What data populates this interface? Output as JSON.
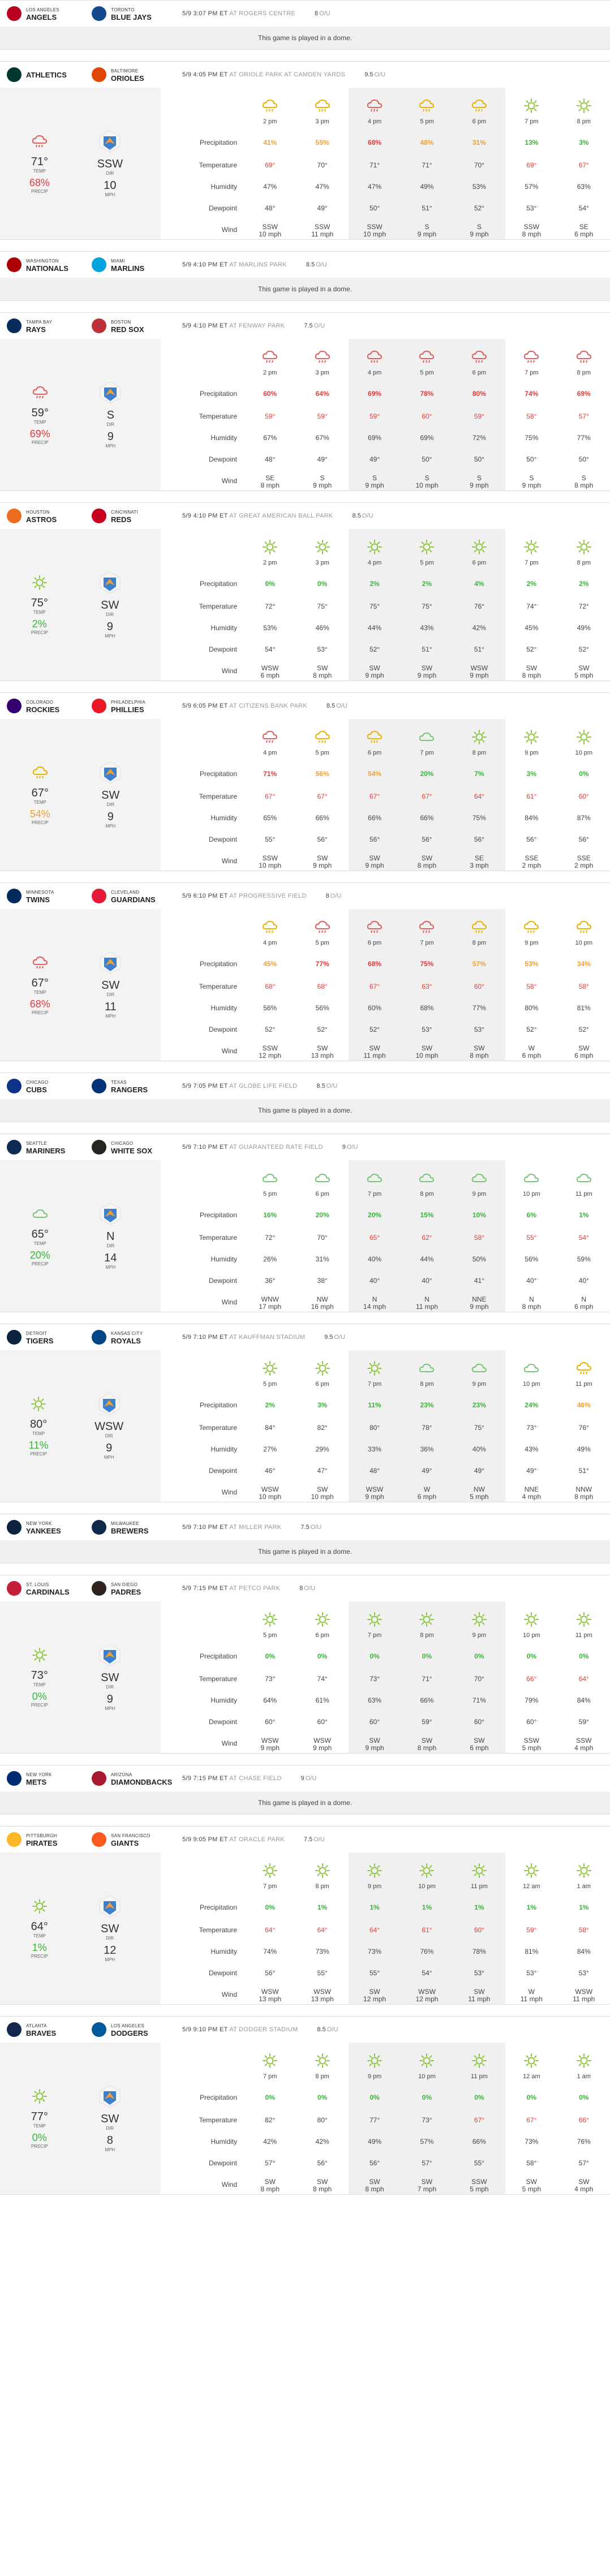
{
  "colors": {
    "green": "#3ab53a",
    "yellow": "#e6b400",
    "orange": "#f0a030",
    "red": "#e03c3c",
    "sun": "#8cc63f",
    "cloud": "#7cc47c",
    "rain": "#e06060"
  },
  "labels": {
    "precip": "Precipitation",
    "temp": "Temperature",
    "humidity": "Humidity",
    "dewpoint": "Dewpoint",
    "wind": "Wind",
    "temp_s": "TEMP",
    "dir_s": "DIR",
    "mph_s": "MPH",
    "precip_s": "PRECIP",
    "dome": "This game is played in a dome.",
    "ou": "O/U"
  },
  "games": [
    {
      "away": {
        "city": "LOS ANGELES",
        "nick": "ANGELS",
        "color": "#ba0021"
      },
      "home": {
        "city": "TORONTO",
        "nick": "BLUE JAYS",
        "color": "#134a8e"
      },
      "time": "5/9 3:07 PM ET",
      "venue": "AT ROGERS CENTRE",
      "ou": "8",
      "dome": true
    },
    {
      "away": {
        "city": "",
        "nick": "ATHLETICS",
        "color": "#003831"
      },
      "home": {
        "city": "BALTIMORE",
        "nick": "ORIOLES",
        "color": "#df4601"
      },
      "time": "5/9 4:05 PM ET",
      "venue": "AT ORIOLE PARK AT CAMDEN YARDS",
      "ou": "9.5",
      "dome": false,
      "summary": {
        "icon": "rain",
        "temp": "71°",
        "dir": "SSW",
        "mph": "10",
        "precip": "68%",
        "pcolor": "red"
      },
      "hours": [
        "2 pm",
        "3 pm",
        "4 pm",
        "5 pm",
        "6 pm",
        "7 pm",
        "8 pm"
      ],
      "icons": [
        "partly",
        "partly",
        "rain",
        "partly",
        "partly",
        "sun",
        "sun"
      ],
      "precip": [
        "41%",
        "55%",
        "68%",
        "48%",
        "31%",
        "13%",
        "3%"
      ],
      "pcolors": [
        "orange",
        "orange",
        "red",
        "orange",
        "orange",
        "green",
        "green"
      ],
      "temp": [
        "69°",
        "70°",
        "71°",
        "71°",
        "70°",
        "69°",
        "67°"
      ],
      "humidity": [
        "47%",
        "47%",
        "47%",
        "49%",
        "53%",
        "57%",
        "63%"
      ],
      "dew": [
        "48°",
        "49°",
        "50°",
        "51°",
        "52°",
        "53°",
        "54°"
      ],
      "wind": [
        "SSW\n10 mph",
        "SSW\n11 mph",
        "SSW\n10 mph",
        "S\n9 mph",
        "S\n9 mph",
        "SSW\n8 mph",
        "SE\n6 mph"
      ],
      "tcolors": [
        "red",
        "",
        "",
        "",
        "",
        "red",
        "red"
      ]
    },
    {
      "away": {
        "city": "WASHINGTON",
        "nick": "NATIONALS",
        "color": "#ab0003"
      },
      "home": {
        "city": "MIAMI",
        "nick": "MARLINS",
        "color": "#00a3e0"
      },
      "time": "5/9 4:10 PM ET",
      "venue": "AT MARLINS PARK",
      "ou": "8.5",
      "dome": true
    },
    {
      "away": {
        "city": "TAMPA BAY",
        "nick": "RAYS",
        "color": "#092c5c"
      },
      "home": {
        "city": "BOSTON",
        "nick": "RED SOX",
        "color": "#bd3039"
      },
      "time": "5/9 4:10 PM ET",
      "venue": "AT FENWAY PARK",
      "ou": "7.5",
      "dome": false,
      "summary": {
        "icon": "rain",
        "temp": "59°",
        "dir": "S",
        "mph": "9",
        "precip": "69%",
        "pcolor": "red"
      },
      "hours": [
        "2 pm",
        "3 pm",
        "4 pm",
        "5 pm",
        "6 pm",
        "7 pm",
        "8 pm"
      ],
      "icons": [
        "rain",
        "rain",
        "rain",
        "rain",
        "rain",
        "rain",
        "rain"
      ],
      "precip": [
        "60%",
        "64%",
        "69%",
        "78%",
        "80%",
        "74%",
        "69%"
      ],
      "pcolors": [
        "red",
        "red",
        "red",
        "red",
        "red",
        "red",
        "red"
      ],
      "temp": [
        "59°",
        "59°",
        "59°",
        "60°",
        "59°",
        "58°",
        "57°"
      ],
      "humidity": [
        "67%",
        "67%",
        "69%",
        "69%",
        "72%",
        "75%",
        "77%"
      ],
      "dew": [
        "48°",
        "49°",
        "49°",
        "50°",
        "50°",
        "50°",
        "50°"
      ],
      "wind": [
        "SE\n8 mph",
        "S\n9 mph",
        "S\n9 mph",
        "S\n10 mph",
        "S\n9 mph",
        "S\n9 mph",
        "S\n8 mph"
      ],
      "tcolors": [
        "red",
        "red",
        "red",
        "red",
        "red",
        "red",
        "red"
      ]
    },
    {
      "away": {
        "city": "HOUSTON",
        "nick": "ASTROS",
        "color": "#eb6e1f"
      },
      "home": {
        "city": "CINCINNATI",
        "nick": "REDS",
        "color": "#c6011f"
      },
      "time": "5/9 4:10 PM ET",
      "venue": "AT GREAT AMERICAN BALL PARK",
      "ou": "8.5",
      "dome": false,
      "summary": {
        "icon": "sun",
        "temp": "75°",
        "dir": "SW",
        "mph": "9",
        "precip": "2%",
        "pcolor": "green"
      },
      "hours": [
        "2 pm",
        "3 pm",
        "4 pm",
        "5 pm",
        "6 pm",
        "7 pm",
        "8 pm"
      ],
      "icons": [
        "sun",
        "sun",
        "sun",
        "sun",
        "sun",
        "sun",
        "sun"
      ],
      "precip": [
        "0%",
        "0%",
        "2%",
        "2%",
        "4%",
        "2%",
        "2%"
      ],
      "pcolors": [
        "green",
        "green",
        "green",
        "green",
        "green",
        "green",
        "green"
      ],
      "temp": [
        "72°",
        "75°",
        "75°",
        "75°",
        "76°",
        "74°",
        "72°"
      ],
      "humidity": [
        "53%",
        "46%",
        "44%",
        "43%",
        "42%",
        "45%",
        "49%"
      ],
      "dew": [
        "54°",
        "53°",
        "52°",
        "51°",
        "51°",
        "52°",
        "52°"
      ],
      "wind": [
        "WSW\n6 mph",
        "SW\n8 mph",
        "SW\n9 mph",
        "SW\n9 mph",
        "WSW\n9 mph",
        "SW\n8 mph",
        "SW\n5 mph"
      ],
      "tcolors": [
        "",
        "",
        "",
        "",
        "",
        "",
        ""
      ]
    },
    {
      "away": {
        "city": "COLORADO",
        "nick": "ROCKIES",
        "color": "#33006f"
      },
      "home": {
        "city": "PHILADELPHIA",
        "nick": "PHILLIES",
        "color": "#e81828"
      },
      "time": "5/9 6:05 PM ET",
      "venue": "AT CITIZENS BANK PARK",
      "ou": "8.5",
      "dome": false,
      "summary": {
        "icon": "partly",
        "temp": "67°",
        "dir": "SW",
        "mph": "9",
        "precip": "54%",
        "pcolor": "orange"
      },
      "hours": [
        "4 pm",
        "5 pm",
        "6 pm",
        "7 pm",
        "8 pm",
        "9 pm",
        "10 pm"
      ],
      "icons": [
        "rain",
        "partly",
        "partly",
        "cloud",
        "sun",
        "sun",
        "sun"
      ],
      "precip": [
        "71%",
        "56%",
        "54%",
        "20%",
        "7%",
        "3%",
        "0%"
      ],
      "pcolors": [
        "red",
        "orange",
        "orange",
        "green",
        "green",
        "green",
        "green"
      ],
      "temp": [
        "67°",
        "67°",
        "67°",
        "67°",
        "64°",
        "61°",
        "60°"
      ],
      "humidity": [
        "65%",
        "66%",
        "66%",
        "66%",
        "75%",
        "84%",
        "87%"
      ],
      "dew": [
        "55°",
        "56°",
        "56°",
        "56°",
        "56°",
        "56°",
        "56°"
      ],
      "wind": [
        "SSW\n10 mph",
        "SW\n9 mph",
        "SW\n9 mph",
        "SW\n8 mph",
        "SE\n3 mph",
        "SSE\n2 mph",
        "SSE\n2 mph"
      ],
      "tcolors": [
        "red",
        "red",
        "red",
        "red",
        "red",
        "red",
        "red"
      ]
    },
    {
      "away": {
        "city": "MINNESOTA",
        "nick": "TWINS",
        "color": "#002b5c"
      },
      "home": {
        "city": "CLEVELAND",
        "nick": "GUARDIANS",
        "color": "#e31937"
      },
      "time": "5/9 6:10 PM ET",
      "venue": "AT PROGRESSIVE FIELD",
      "ou": "8",
      "dome": false,
      "summary": {
        "icon": "rain",
        "temp": "67°",
        "dir": "SW",
        "mph": "11",
        "precip": "68%",
        "pcolor": "red"
      },
      "hours": [
        "4 pm",
        "5 pm",
        "6 pm",
        "7 pm",
        "8 pm",
        "9 pm",
        "10 pm"
      ],
      "icons": [
        "partly",
        "rain",
        "rain",
        "rain",
        "partly",
        "partly",
        "partly"
      ],
      "precip": [
        "45%",
        "77%",
        "68%",
        "75%",
        "57%",
        "53%",
        "34%"
      ],
      "pcolors": [
        "orange",
        "red",
        "red",
        "red",
        "orange",
        "orange",
        "orange"
      ],
      "temp": [
        "68°",
        "68°",
        "67°",
        "63°",
        "60°",
        "58°",
        "58°"
      ],
      "humidity": [
        "56%",
        "56%",
        "60%",
        "68%",
        "77%",
        "80%",
        "81%"
      ],
      "dew": [
        "52°",
        "52°",
        "52°",
        "53°",
        "53°",
        "52°",
        "52°"
      ],
      "wind": [
        "SSW\n12 mph",
        "SW\n13 mph",
        "SW\n11 mph",
        "SW\n10 mph",
        "SW\n8 mph",
        "W\n6 mph",
        "SW\n6 mph"
      ],
      "tcolors": [
        "red",
        "red",
        "red",
        "red",
        "red",
        "red",
        "red"
      ]
    },
    {
      "away": {
        "city": "CHICAGO",
        "nick": "CUBS",
        "color": "#0e3386"
      },
      "home": {
        "city": "TEXAS",
        "nick": "RANGERS",
        "color": "#003278"
      },
      "time": "5/9 7:05 PM ET",
      "venue": "AT GLOBE LIFE FIELD",
      "ou": "8.5",
      "dome": true
    },
    {
      "away": {
        "city": "SEATTLE",
        "nick": "MARINERS",
        "color": "#0c2c56"
      },
      "home": {
        "city": "CHICAGO",
        "nick": "WHITE SOX",
        "color": "#27251f"
      },
      "time": "5/9 7:10 PM ET",
      "venue": "AT GUARANTEED RATE FIELD",
      "ou": "9",
      "dome": false,
      "summary": {
        "icon": "cloud",
        "temp": "65°",
        "dir": "N",
        "mph": "14",
        "precip": "20%",
        "pcolor": "green"
      },
      "hours": [
        "5 pm",
        "6 pm",
        "7 pm",
        "8 pm",
        "9 pm",
        "10 pm",
        "11 pm"
      ],
      "icons": [
        "cloud",
        "cloud",
        "cloud",
        "cloud",
        "cloud",
        "cloud",
        "cloud"
      ],
      "precip": [
        "16%",
        "20%",
        "20%",
        "15%",
        "10%",
        "6%",
        "1%"
      ],
      "pcolors": [
        "green",
        "green",
        "green",
        "green",
        "green",
        "green",
        "green"
      ],
      "temp": [
        "72°",
        "70°",
        "65°",
        "62°",
        "58°",
        "55°",
        "54°"
      ],
      "humidity": [
        "26%",
        "31%",
        "40%",
        "44%",
        "50%",
        "56%",
        "59%"
      ],
      "dew": [
        "36°",
        "38°",
        "40°",
        "40°",
        "41°",
        "40°",
        "40°"
      ],
      "wind": [
        "WNW\n17 mph",
        "NW\n16 mph",
        "N\n14 mph",
        "N\n11 mph",
        "NNE\n9 mph",
        "N\n8 mph",
        "N\n6 mph"
      ],
      "tcolors": [
        "",
        "",
        "red",
        "red",
        "red",
        "red",
        "red"
      ]
    },
    {
      "away": {
        "city": "DETROIT",
        "nick": "TIGERS",
        "color": "#0c2340"
      },
      "home": {
        "city": "KANSAS CITY",
        "nick": "ROYALS",
        "color": "#004687"
      },
      "time": "5/9 7:10 PM ET",
      "venue": "AT KAUFFMAN STADIUM",
      "ou": "9.5",
      "dome": false,
      "summary": {
        "icon": "sun",
        "temp": "80°",
        "dir": "WSW",
        "mph": "9",
        "precip": "11%",
        "pcolor": "green"
      },
      "hours": [
        "5 pm",
        "6 pm",
        "7 pm",
        "8 pm",
        "9 pm",
        "10 pm",
        "11 pm"
      ],
      "icons": [
        "sun",
        "sun",
        "sun",
        "cloud",
        "cloud",
        "cloud",
        "partly"
      ],
      "precip": [
        "2%",
        "3%",
        "11%",
        "23%",
        "23%",
        "24%",
        "46%"
      ],
      "pcolors": [
        "green",
        "green",
        "green",
        "green",
        "green",
        "green",
        "orange"
      ],
      "temp": [
        "84°",
        "82°",
        "80°",
        "78°",
        "75°",
        "73°",
        "76°"
      ],
      "humidity": [
        "27%",
        "29%",
        "33%",
        "36%",
        "40%",
        "43%",
        "49%"
      ],
      "dew": [
        "46°",
        "47°",
        "48°",
        "49°",
        "49°",
        "49°",
        "51°"
      ],
      "wind": [
        "WSW\n10 mph",
        "SW\n10 mph",
        "WSW\n9 mph",
        "W\n6 mph",
        "NW\n5 mph",
        "NNE\n4 mph",
        "NNW\n8 mph"
      ],
      "tcolors": [
        "",
        "",
        "",
        "",
        "",
        "",
        ""
      ]
    },
    {
      "away": {
        "city": "NEW YORK",
        "nick": "YANKEES",
        "color": "#0c2340"
      },
      "home": {
        "city": "MILWAUKEE",
        "nick": "BREWERS",
        "color": "#12284b"
      },
      "time": "5/9 7:10 PM ET",
      "venue": "AT MILLER PARK",
      "ou": "7.5",
      "dome": true
    },
    {
      "away": {
        "city": "ST. LOUIS",
        "nick": "CARDINALS",
        "color": "#c41e3a"
      },
      "home": {
        "city": "SAN DIEGO",
        "nick": "PADRES",
        "color": "#2f241d"
      },
      "time": "5/9 7:15 PM ET",
      "venue": "AT PETCO PARK",
      "ou": "8",
      "dome": false,
      "summary": {
        "icon": "sun",
        "temp": "73°",
        "dir": "SW",
        "mph": "9",
        "precip": "0%",
        "pcolor": "green"
      },
      "hours": [
        "5 pm",
        "6 pm",
        "7 pm",
        "8 pm",
        "9 pm",
        "10 pm",
        "11 pm"
      ],
      "icons": [
        "sun",
        "sun",
        "sun",
        "sun",
        "sun",
        "sun",
        "sun"
      ],
      "precip": [
        "0%",
        "0%",
        "0%",
        "0%",
        "0%",
        "0%",
        "0%"
      ],
      "pcolors": [
        "green",
        "green",
        "green",
        "green",
        "green",
        "green",
        "green"
      ],
      "temp": [
        "73°",
        "74°",
        "73°",
        "71°",
        "70°",
        "66°",
        "64°"
      ],
      "humidity": [
        "64%",
        "61%",
        "63%",
        "66%",
        "71%",
        "79%",
        "84%"
      ],
      "dew": [
        "60°",
        "60°",
        "60°",
        "59°",
        "60°",
        "60°",
        "59°"
      ],
      "wind": [
        "WSW\n9 mph",
        "WSW\n9 mph",
        "SW\n9 mph",
        "SW\n8 mph",
        "SW\n6 mph",
        "SSW\n5 mph",
        "SSW\n4 mph"
      ],
      "tcolors": [
        "",
        "",
        "",
        "",
        "",
        "red",
        "red"
      ]
    },
    {
      "away": {
        "city": "NEW YORK",
        "nick": "METS",
        "color": "#002d72"
      },
      "home": {
        "city": "ARIZONA",
        "nick": "DIAMONDBACKS",
        "color": "#a71930"
      },
      "time": "5/9 7:15 PM ET",
      "venue": "AT CHASE FIELD",
      "ou": "9",
      "dome": true
    },
    {
      "away": {
        "city": "PITTSBURGH",
        "nick": "PIRATES",
        "color": "#fdb827"
      },
      "home": {
        "city": "SAN FRANCISCO",
        "nick": "GIANTS",
        "color": "#fd5a1e"
      },
      "time": "5/9 9:05 PM ET",
      "venue": "AT ORACLE PARK",
      "ou": "7.5",
      "dome": false,
      "summary": {
        "icon": "sun",
        "temp": "64°",
        "dir": "SW",
        "mph": "12",
        "precip": "1%",
        "pcolor": "green"
      },
      "hours": [
        "7 pm",
        "8 pm",
        "9 pm",
        "10 pm",
        "11 pm",
        "12 am",
        "1 am"
      ],
      "icons": [
        "sun",
        "sun",
        "sun",
        "sun",
        "sun",
        "sun",
        "sun"
      ],
      "precip": [
        "0%",
        "1%",
        "1%",
        "1%",
        "1%",
        "1%",
        "1%"
      ],
      "pcolors": [
        "green",
        "green",
        "green",
        "green",
        "green",
        "green",
        "green"
      ],
      "temp": [
        "64°",
        "64°",
        "64°",
        "61°",
        "60°",
        "59°",
        "58°"
      ],
      "humidity": [
        "74%",
        "73%",
        "73%",
        "76%",
        "78%",
        "81%",
        "84%"
      ],
      "dew": [
        "56°",
        "55°",
        "55°",
        "54°",
        "53°",
        "53°",
        "53°"
      ],
      "wind": [
        "WSW\n13 mph",
        "WSW\n13 mph",
        "SW\n12 mph",
        "WSW\n12 mph",
        "SW\n11 mph",
        "W\n11 mph",
        "WSW\n11 mph"
      ],
      "tcolors": [
        "red",
        "red",
        "red",
        "red",
        "red",
        "red",
        "red"
      ]
    },
    {
      "away": {
        "city": "ATLANTA",
        "nick": "BRAVES",
        "color": "#13274f"
      },
      "home": {
        "city": "LOS ANGELES",
        "nick": "DODGERS",
        "color": "#005a9c"
      },
      "time": "5/9 9:10 PM ET",
      "venue": "AT DODGER STADIUM",
      "ou": "8.5",
      "dome": false,
      "summary": {
        "icon": "sun",
        "temp": "77°",
        "dir": "SW",
        "mph": "8",
        "precip": "0%",
        "pcolor": "green"
      },
      "hours": [
        "7 pm",
        "8 pm",
        "9 pm",
        "10 pm",
        "11 pm",
        "12 am",
        "1 am"
      ],
      "icons": [
        "sun",
        "sun",
        "sun",
        "sun",
        "sun",
        "sun",
        "sun"
      ],
      "precip": [
        "0%",
        "0%",
        "0%",
        "0%",
        "0%",
        "0%",
        "0%"
      ],
      "pcolors": [
        "green",
        "green",
        "green",
        "green",
        "green",
        "green",
        "green"
      ],
      "temp": [
        "82°",
        "80°",
        "77°",
        "73°",
        "67°",
        "67°",
        "66°"
      ],
      "humidity": [
        "42%",
        "42%",
        "49%",
        "57%",
        "66%",
        "73%",
        "76%"
      ],
      "dew": [
        "57°",
        "56°",
        "56°",
        "57°",
        "55°",
        "58°",
        "57°"
      ],
      "wind": [
        "SW\n8 mph",
        "SW\n8 mph",
        "SW\n8 mph",
        "SW\n7 mph",
        "SSW\n5 mph",
        "SW\n5 mph",
        "SW\n4 mph"
      ],
      "tcolors": [
        "",
        "",
        "",
        "",
        "red",
        "red",
        "red"
      ]
    }
  ]
}
